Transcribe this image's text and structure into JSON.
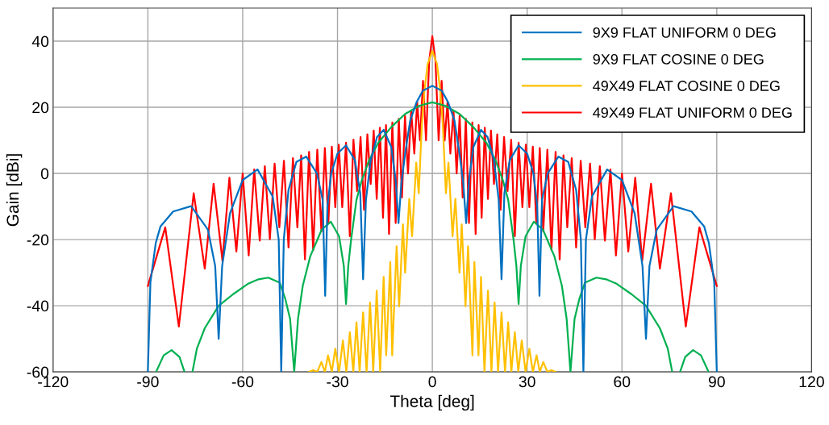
{
  "chart_data": {
    "type": "line",
    "xlabel": "Theta [deg]",
    "ylabel": "Gain [dBi]",
    "xlim": [
      -120,
      120
    ],
    "xticks": [
      -120,
      -90,
      -60,
      -30,
      0,
      30,
      60,
      90,
      120
    ],
    "ylim": [
      -60,
      50
    ],
    "yticks": [
      -60,
      -40,
      -20,
      0,
      20,
      40
    ],
    "grid": true,
    "legend": "top right",
    "marker": "none",
    "line_style": "solid",
    "series": [
      {
        "name": "9X9 FLAT UNIFORM 0 DEG",
        "color": "#0070c0",
        "x": [
          -90,
          -89.2,
          -87.5,
          -86,
          -82,
          -76.3,
          -71,
          -68.7,
          -67.6,
          -66.5,
          -64,
          -60,
          -55.3,
          -50.5,
          -48.6,
          -47.8,
          -47,
          -45.5,
          -43,
          -39.9,
          -36.5,
          -34.7,
          -33.9,
          -33.2,
          -32,
          -30,
          -27.3,
          -24.5,
          -22.8,
          -21.9,
          -21,
          -19.5,
          -17.5,
          -15.4,
          -13,
          -11.6,
          -10.7,
          -9.8,
          -8.6,
          -7,
          -5,
          -3,
          0,
          3,
          5,
          7,
          8.6,
          9.8,
          10.7,
          11.6,
          13,
          15.4,
          17.5,
          19.5,
          21,
          21.9,
          22.8,
          24.5,
          27.3,
          30,
          32,
          33.2,
          33.9,
          34.7,
          36.5,
          39.9,
          43,
          45.5,
          47,
          47.8,
          48.6,
          50.5,
          55.3,
          60,
          64,
          66.5,
          67.6,
          68.7,
          71,
          76.3,
          82,
          86,
          87.5,
          89.2,
          90
        ],
        "values": [
          -60,
          -33,
          -21,
          -16,
          -11.5,
          -9.9,
          -17,
          -28,
          -50,
          -28,
          -12,
          -2,
          1.2,
          -7,
          -20,
          -60,
          -20,
          -5,
          3.5,
          5.1,
          0,
          -8,
          -37,
          -10,
          0,
          6,
          8.5,
          4,
          -6,
          -32,
          -8,
          4,
          11,
          13.2,
          8,
          -2,
          -15,
          -3,
          6,
          16,
          21.5,
          25,
          26.5,
          25,
          21.5,
          16,
          6,
          -3,
          -15,
          -2,
          8,
          13.2,
          11,
          4,
          -8,
          -32,
          -6,
          4,
          8.5,
          6,
          0,
          -10,
          -37,
          -8,
          0,
          5.1,
          3.5,
          -5,
          -20,
          -60,
          -20,
          -7,
          1.2,
          -2,
          -12,
          -28,
          -50,
          -28,
          -17,
          -9.9,
          -11.5,
          -16,
          -21,
          -33,
          -60
        ]
      },
      {
        "name": "9X9 FLAT COSINE 0 DEG",
        "color": "#00b050",
        "x": [
          -87.4,
          -85,
          -82.5,
          -80,
          -78.4,
          -77.2,
          -75.9,
          -74.5,
          -72,
          -67.6,
          -63,
          -58.4,
          -55,
          -51.9,
          -48.3,
          -46.5,
          -45,
          -43.7,
          -42.5,
          -41,
          -38.6,
          -35,
          -32.1,
          -29.5,
          -28,
          -27.3,
          -26.6,
          -25.7,
          -24,
          -22.3,
          -20,
          -17.1,
          -13,
          -8.6,
          -4,
          0,
          4,
          8.6,
          13,
          17.1,
          20,
          22.3,
          24,
          25.7,
          26.6,
          27.3,
          28,
          29.5,
          32.1,
          35,
          38.6,
          41,
          42.5,
          43.7,
          45,
          46.5,
          48.3,
          51.9,
          55,
          58.4,
          63,
          67.6,
          72,
          74.5,
          75.9,
          77.2,
          78.4,
          80,
          82.5,
          85,
          87.4
        ],
        "values": [
          -60,
          -55,
          -53.4,
          -55.5,
          -60,
          null,
          -60,
          -53,
          -46.8,
          -40,
          -36.5,
          -33.4,
          -32,
          -31.5,
          -33,
          -38,
          -44,
          -60,
          -44,
          -34,
          -25,
          -17,
          -14.6,
          -19,
          -28,
          -39.5,
          -28,
          -20,
          -8,
          -2,
          4,
          9.3,
          14,
          18,
          20.5,
          21.5,
          20.5,
          18,
          14,
          9.3,
          4,
          -2,
          -8,
          -20,
          -28,
          -39.5,
          -28,
          -19,
          -14.6,
          -17,
          -25,
          -34,
          -44,
          -60,
          -44,
          -38,
          -33,
          -31.5,
          -32,
          -33.4,
          -36.5,
          -40,
          -46.8,
          -53,
          -60,
          null,
          -60,
          -55.5,
          -53.4,
          -55,
          -60
        ]
      },
      {
        "name": "49X49 FLAT COSINE 0 DEG",
        "color": "#ffc000",
        "x": [
          -39,
          -37.7,
          -36.4,
          -35.1,
          -34,
          -33,
          -31.8,
          -30.7,
          -29.5,
          -28.3,
          -27.2,
          -26.1,
          -25,
          -24,
          -23,
          -21.9,
          -20.8,
          -19.7,
          -18.7,
          -17.6,
          -16.5,
          -15.4,
          -14.6,
          -13.3,
          -12.7,
          -11.3,
          -10.5,
          -9.3,
          -8.6,
          -7.3,
          -6.4,
          -5.1,
          -4.3,
          -3.3,
          -2.5,
          -1.5,
          0,
          1.5,
          2.5,
          3.3,
          4.3,
          5.1,
          6.4,
          7.3,
          8.6,
          9.3,
          10.5,
          11.3,
          12.7,
          13.3,
          14.6,
          15.4,
          16.5,
          17.6,
          18.7,
          19.7,
          20.8,
          21.9,
          23,
          24,
          25,
          26.1,
          27.2,
          28.3,
          29.5,
          30.7,
          31.8,
          33,
          34,
          35.1,
          36.4,
          37.7,
          39
        ],
        "values": [
          -60,
          -59.5,
          -60,
          -57,
          -60,
          -55,
          -60,
          -53,
          -60,
          -50.5,
          -60,
          -48,
          -60,
          -45,
          -60,
          -42,
          -60,
          -39,
          -60,
          -35.4,
          -60,
          -31.3,
          -55,
          -26.8,
          -55,
          -22,
          -40.2,
          -15.4,
          -30,
          -7.7,
          -19,
          3.3,
          -6,
          15,
          25,
          33,
          37,
          33,
          25,
          15,
          -6,
          3.3,
          -19,
          -7.7,
          -30,
          -15.4,
          -40.2,
          -22,
          -55,
          -26.8,
          -55,
          -31.3,
          -60,
          -35.4,
          -60,
          -39,
          -60,
          -42,
          -60,
          -45,
          -60,
          -48,
          -60,
          -50.5,
          -60,
          -53,
          -60,
          -55,
          -60,
          -57,
          -60,
          -59.5,
          -60
        ]
      },
      {
        "name": "49X49 FLAT UNIFORM 0 DEG",
        "color": "#ff0000",
        "x": [
          -90,
          -84.5,
          -80.2,
          -75.5,
          -72,
          -69.2,
          -66.4,
          -64.2,
          -62,
          -60,
          -58.1,
          -56.35,
          -54.6,
          -53,
          -51.4,
          -49.9,
          -48.4,
          -46.95,
          -45.5,
          -44.1,
          -42.7,
          -41.5,
          -40.3,
          -39,
          -37.7,
          -36.4,
          -35.1,
          -34,
          -32.9,
          -31.8,
          -30.7,
          -29.6,
          -28.5,
          -27.3,
          -26.1,
          -24.95,
          -23.8,
          -22.7,
          -21.6,
          -20.55,
          -19.5,
          -18.55,
          -17.6,
          -16.6,
          -15.6,
          -14.65,
          -13.7,
          -12.65,
          -11.6,
          -10.6,
          -9.6,
          -8.65,
          -7.7,
          -6.7,
          -5.7,
          -4.8,
          -3.9,
          -2.95,
          -2,
          -1,
          0,
          1,
          2,
          2.95,
          3.9,
          4.8,
          5.7,
          6.7,
          7.7,
          8.65,
          9.6,
          10.6,
          11.6,
          12.65,
          13.7,
          14.65,
          15.6,
          16.6,
          17.6,
          18.55,
          19.5,
          20.55,
          21.6,
          22.7,
          23.8,
          24.95,
          26.1,
          27.3,
          28.5,
          29.6,
          30.7,
          31.8,
          32.9,
          34,
          35.1,
          36.4,
          37.7,
          39,
          40.3,
          41.5,
          42.7,
          44.1,
          45.5,
          46.95,
          48.4,
          49.9,
          51.4,
          53,
          54.6,
          56.35,
          58.1,
          60,
          62,
          64.2,
          66.4,
          69.2,
          72,
          75.5,
          80.2,
          84.5,
          90
        ],
        "values": [
          -34,
          -16.3,
          -46.3,
          -6,
          -28.8,
          -3.1,
          -26.4,
          -1.3,
          -23.6,
          0,
          -24.8,
          1.2,
          -20.3,
          2.2,
          -19.9,
          3,
          -16.3,
          3.8,
          -22.4,
          4.6,
          -16.3,
          5.5,
          -26,
          6.5,
          -23.2,
          7.2,
          -17.5,
          7.7,
          -15,
          8.1,
          -10.2,
          8.7,
          -10.2,
          9.3,
          -19,
          10.2,
          -5.3,
          11,
          -11,
          11.8,
          -3.2,
          13,
          -7.7,
          13.8,
          -13.4,
          14.6,
          -18.3,
          15.4,
          -15,
          16.5,
          -7.3,
          17.5,
          0,
          19,
          6,
          21.5,
          10,
          28,
          10,
          34,
          41.5,
          34,
          10,
          28,
          10,
          21.5,
          6,
          19,
          0,
          17.5,
          -7.3,
          16.5,
          -15,
          15.4,
          -18.3,
          14.6,
          -13.4,
          13.8,
          -7.7,
          13,
          -3.2,
          11.8,
          -11,
          11,
          -5.3,
          10.2,
          -19,
          9.3,
          -10.2,
          8.7,
          -10.2,
          8.1,
          -15,
          7.7,
          -17.5,
          7.2,
          -23.2,
          6.5,
          -26,
          5.5,
          -16.3,
          4.6,
          -22.4,
          3.8,
          -16.3,
          3,
          -19.9,
          2.2,
          -20.3,
          1.2,
          -24.8,
          0,
          -23.6,
          -1.3,
          -26.4,
          -3.1,
          -28.8,
          -6,
          -46.3,
          -16.3,
          -34
        ]
      }
    ]
  }
}
